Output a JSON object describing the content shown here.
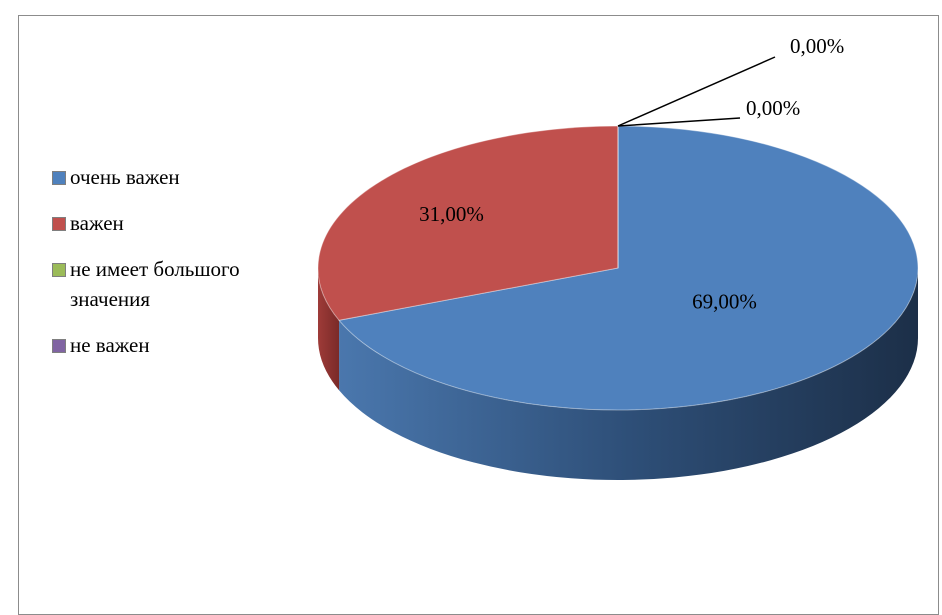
{
  "chart_data": {
    "type": "pie",
    "categories": [
      "очень важен",
      "важен",
      "не имеет большого значения",
      "не важен"
    ],
    "values": [
      69,
      31,
      0,
      0
    ],
    "value_labels": [
      "69,00%",
      "31,00%",
      "0,00%",
      "0,00%"
    ],
    "colors": [
      "#4f81bd",
      "#c0504d",
      "#9bbb59",
      "#8064a2"
    ],
    "legend": "left"
  }
}
